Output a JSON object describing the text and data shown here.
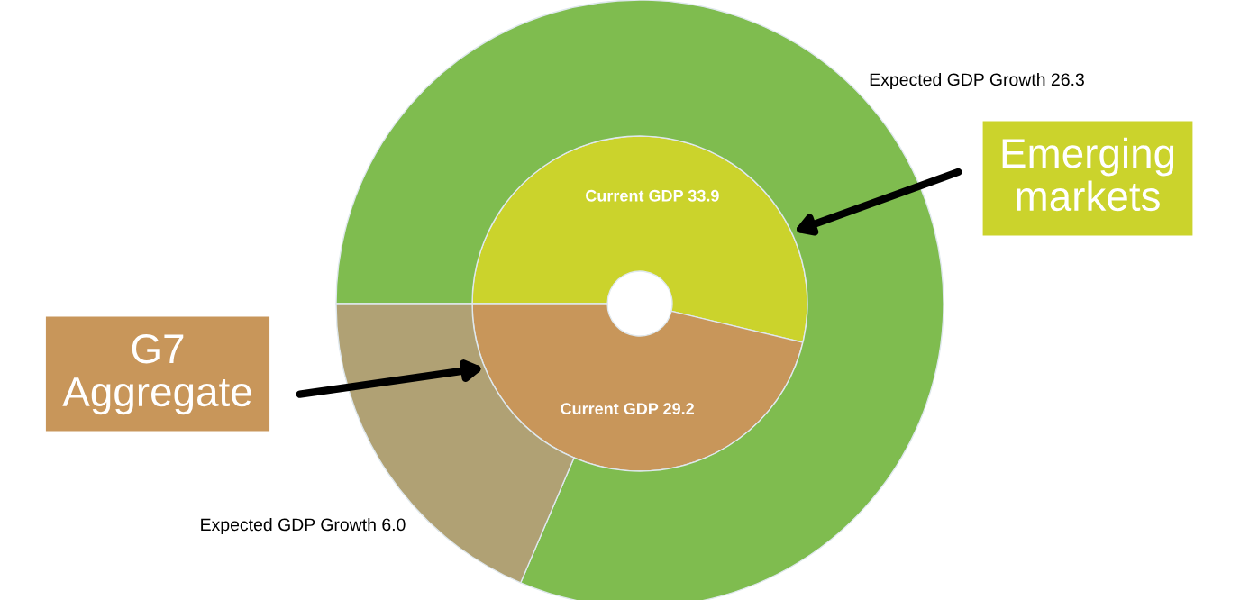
{
  "chart_data": {
    "type": "donut",
    "series": [
      {
        "values": [
          53.72,
          46.28
        ],
        "value_labels": [
          "Current GDP 33.9",
          "Current GDP 29.2"
        ],
        "colors": [
          "#cbd32c",
          "#c8965a"
        ]
      },
      {
        "values": [
          81.42,
          18.58
        ],
        "value_labels": [
          "Expected GDP Growth 26.3",
          "Expected GDP Growth 6.0"
        ],
        "colors": [
          "#7fbc4f",
          "#b0a174"
        ]
      }
    ],
    "annotations": [
      "Emerging\nmarkets",
      "G7\nAggregate"
    ]
  }
}
